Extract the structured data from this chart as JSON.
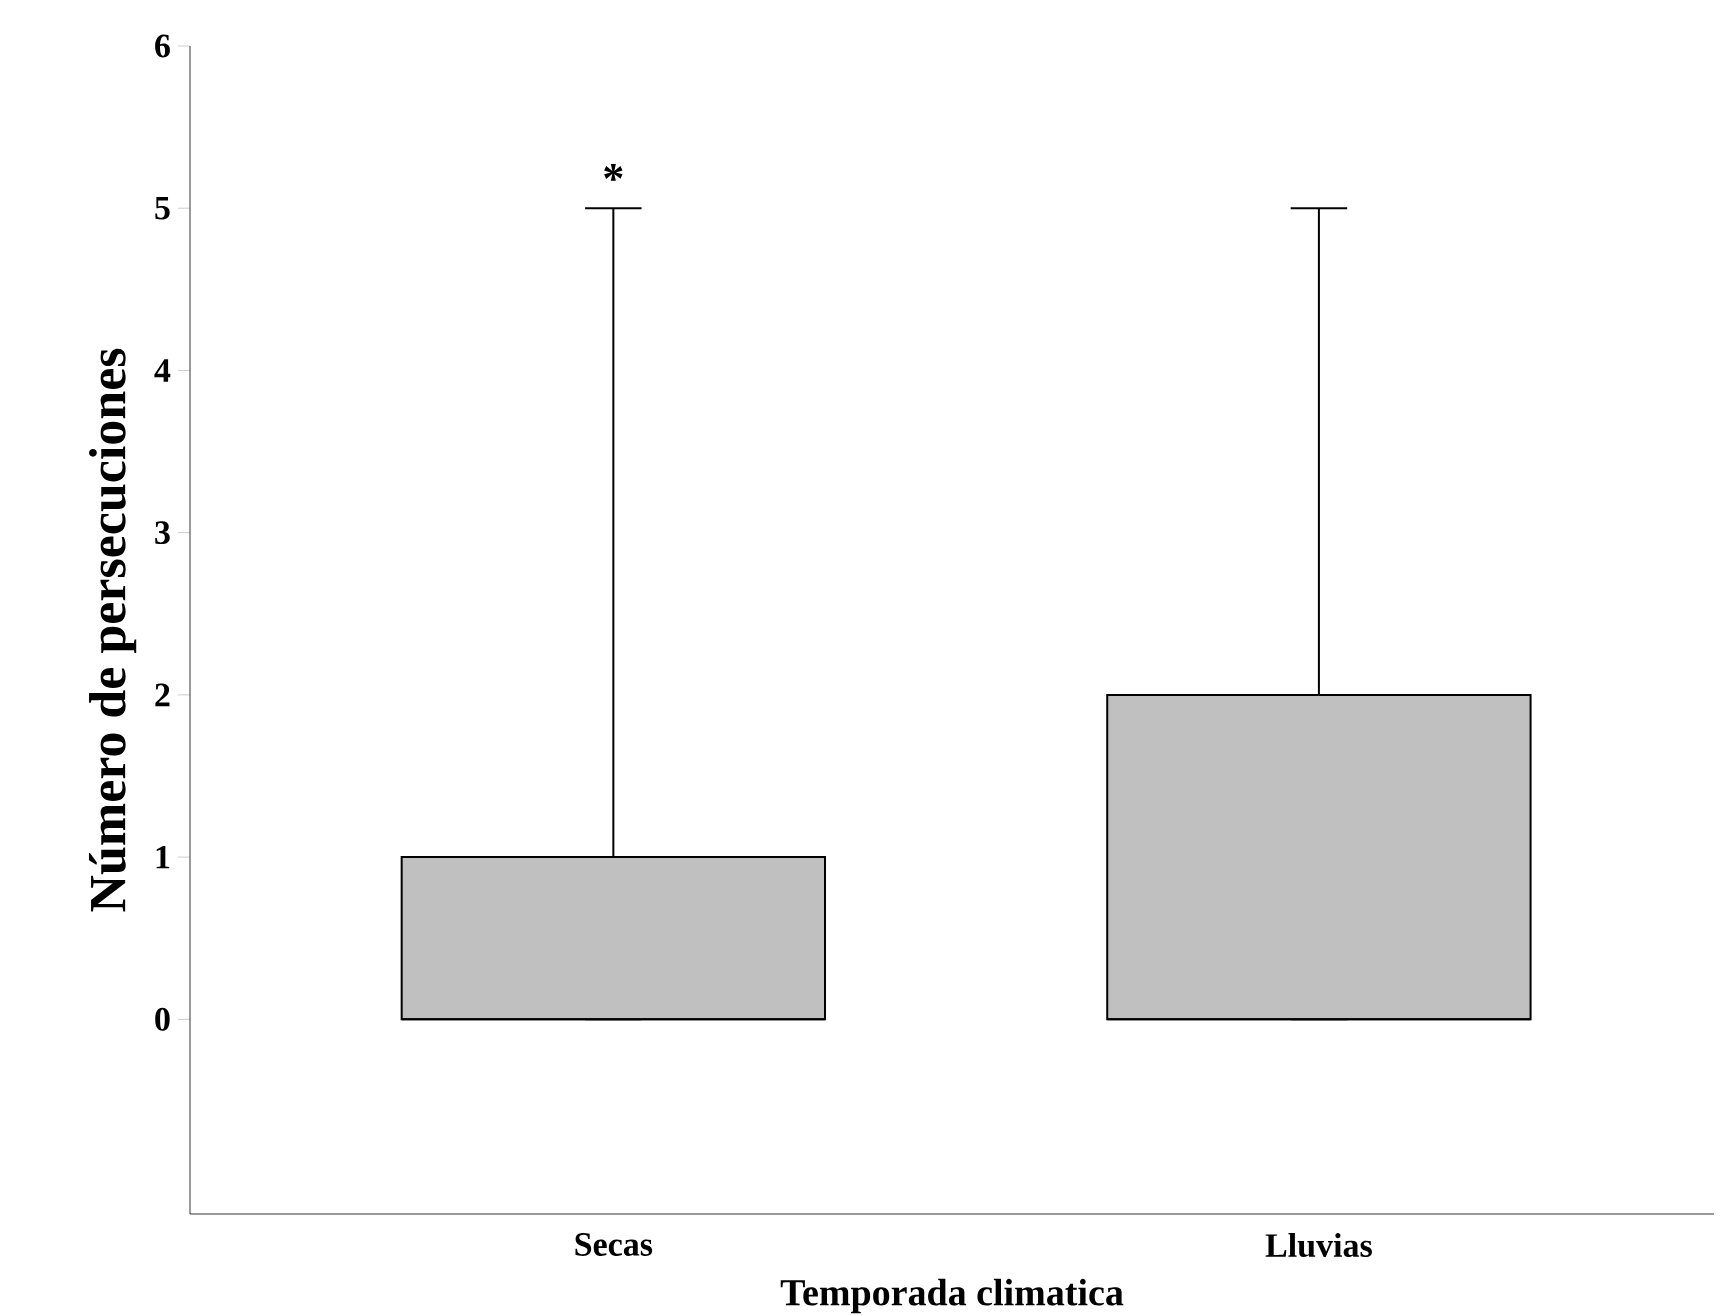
{
  "chart_data": {
    "type": "box",
    "xlabel": "Temporada climatica",
    "ylabel": "Número de persecuciones",
    "categories": [
      "Secas",
      "Lluvias"
    ],
    "boxes": [
      {
        "low": 0,
        "q1": 0,
        "median": 0,
        "q3": 1,
        "high": 5
      },
      {
        "low": 0,
        "q1": 0,
        "median": 0,
        "q3": 2,
        "high": 5
      }
    ],
    "color": "#c0c0c0",
    "ylim": [
      -1.2,
      6
    ],
    "yticks": [
      0,
      1,
      2,
      3,
      4,
      5,
      6
    ],
    "annotations": [
      "*"
    ]
  }
}
